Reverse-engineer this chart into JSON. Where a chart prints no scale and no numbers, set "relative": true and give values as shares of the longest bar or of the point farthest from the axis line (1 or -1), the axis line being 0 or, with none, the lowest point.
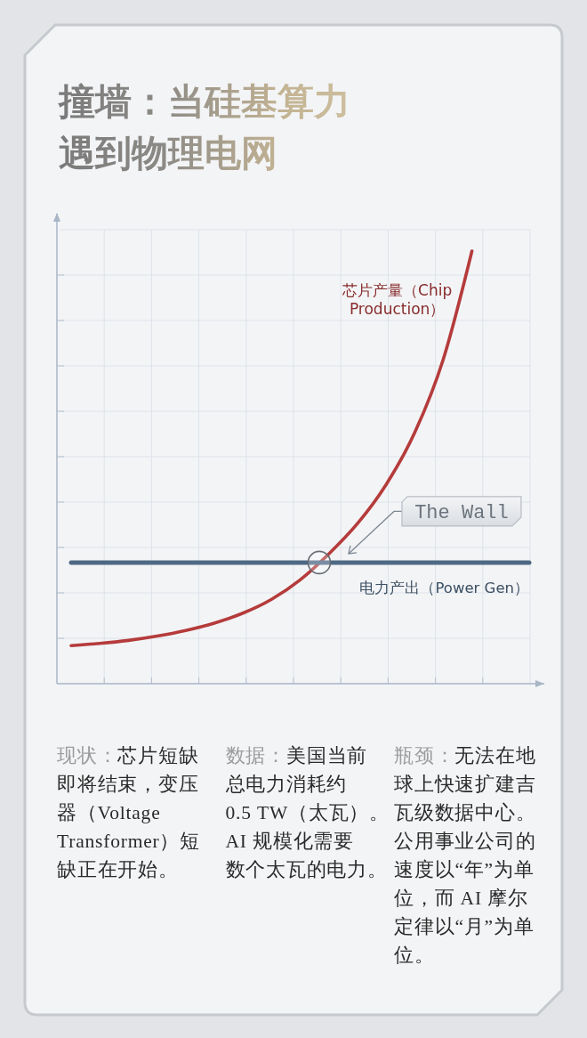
{
  "chart_data": {
    "type": "line",
    "title": "撞墙：当硅基算力遇到物理电网",
    "relative": true,
    "grid": true,
    "categories": [
      null,
      null,
      null,
      null,
      null,
      null,
      null,
      null,
      null,
      null,
      null,
      null,
      null,
      null,
      null,
      null,
      null
    ],
    "series": [
      {
        "name": "芯片产量（Chip Production）",
        "color": "#b53b3b",
        "values": [
          0.088,
          0.093,
          0.1,
          0.11,
          0.123,
          0.14,
          0.163,
          0.195,
          0.24,
          0.3,
          0.37,
          0.46,
          0.58,
          0.75,
          1,
          null,
          null
        ]
      },
      {
        "name": "电力产出（Power Gen）",
        "color": "#4e6984",
        "values": [
          0.28,
          0.28,
          0.28,
          0.28,
          0.28,
          0.28,
          0.28,
          0.28,
          0.28,
          0.28,
          0.28,
          0.28,
          0.28,
          0.28,
          0.28,
          0.28,
          0.28
        ]
      }
    ],
    "annotations": [
      {
        "text": "The Wall",
        "y": 0.28
      },
      "现状：芯片短缺即将结束，变压器（Voltage Transformer）短缺正在开始。",
      "数据：美国当前总电力消耗约0.5 TW（太瓦）。AI 规模化需要数个太瓦的电力。",
      "瓶颈：无法在地球上快速扩建吉瓦级数据中心。公用事业公司的速度以“年”为单位，而 AI 摩尔定律以“月”为单位。"
    ]
  }
}
